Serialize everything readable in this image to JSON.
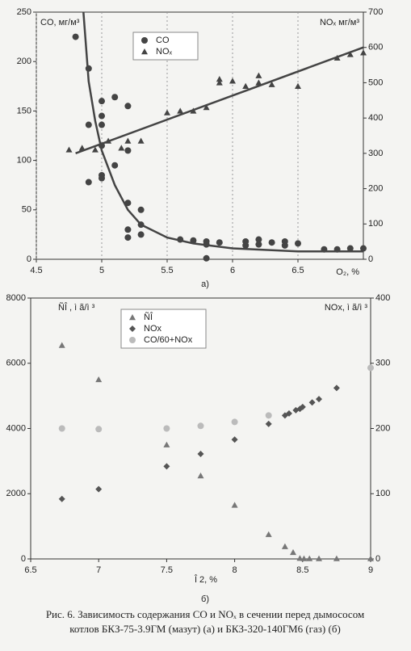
{
  "chart_data": [
    {
      "type": "scatter",
      "label": "а)",
      "ylabel": "CO, мг/м³",
      "y2label": "NOₓ мг/м³",
      "xlabel": "O₂, %",
      "xlim": [
        4.5,
        7
      ],
      "xticks": [
        4.5,
        5,
        5.5,
        6,
        6.5
      ],
      "ylim": [
        0,
        250
      ],
      "yticks": [
        0,
        50,
        100,
        150,
        200,
        250
      ],
      "y2lim": [
        0,
        700
      ],
      "y2ticks": [
        0,
        100,
        200,
        300,
        400,
        500,
        600,
        700
      ],
      "grid": true,
      "legend": "top",
      "series": [
        {
          "name": "CO",
          "marker": "circle",
          "color": "#444",
          "x": [
            4.8,
            4.9,
            4.9,
            4.9,
            5,
            5,
            5,
            5,
            5,
            5,
            5.1,
            5.1,
            5.2,
            5.2,
            5.2,
            5.2,
            5.2,
            5.3,
            5.3,
            5.3,
            5.6,
            5.7,
            5.8,
            5.8,
            5.8,
            5.9,
            6.1,
            6.1,
            6.2,
            6.2,
            6.3,
            6.4,
            6.4,
            6.5,
            6.7,
            6.8,
            6.9,
            7
          ],
          "values": [
            225,
            193,
            136,
            78,
            160,
            145,
            136,
            115,
            85,
            82,
            164,
            95,
            155,
            110,
            57,
            30,
            22,
            50,
            35,
            25,
            20,
            19,
            18,
            15,
            1,
            17,
            18,
            14,
            20,
            15,
            17,
            18,
            14,
            16,
            10,
            10,
            11,
            11
          ]
        },
        {
          "name": "NOₓ",
          "marker": "triangle",
          "color": "#444",
          "axis": "y2",
          "x": [
            4.75,
            4.85,
            4.95,
            5.05,
            5.15,
            5.2,
            5.3,
            5.5,
            5.6,
            5.7,
            5.8,
            5.9,
            5.9,
            6,
            6.1,
            6.2,
            6.2,
            6.3,
            6.5,
            6.8,
            6.9,
            7
          ],
          "values": [
            310,
            315,
            310,
            335,
            315,
            335,
            335,
            415,
            420,
            420,
            430,
            500,
            510,
            505,
            490,
            520,
            500,
            495,
            490,
            570,
            580,
            585
          ]
        },
        {
          "type": "line",
          "color": "#444",
          "x": [
            4.86,
            4.9,
            4.95,
            5,
            5.1,
            5.2,
            5.3,
            5.5,
            5.7,
            6,
            6.5,
            7
          ],
          "values": [
            250,
            180,
            140,
            110,
            75,
            50,
            35,
            22,
            16,
            11,
            8,
            8
          ]
        },
        {
          "type": "line",
          "color": "#444",
          "axis": "y2",
          "x": [
            4.8,
            7
          ],
          "values": [
            300,
            600
          ]
        }
      ]
    },
    {
      "type": "scatter",
      "label": "б)",
      "ylabel": "ÑÎ , ì ã/ì ³",
      "y2label": "NOx, ì ã/ì ³",
      "xlabel": "Î 2, %",
      "xlim": [
        6.5,
        9
      ],
      "xticks": [
        6.5,
        7,
        7.5,
        8,
        8.5,
        9
      ],
      "ylim": [
        0,
        8000
      ],
      "yticks": [
        0,
        2000,
        4000,
        6000,
        8000
      ],
      "y2lim": [
        0,
        400
      ],
      "y2ticks": [
        0,
        100,
        200,
        300,
        400
      ],
      "grid": false,
      "legend": "top",
      "series": [
        {
          "name": "ÑÎ",
          "marker": "triangle",
          "color": "#777",
          "x": [
            6.73,
            7,
            7.5,
            7.75,
            8,
            8.25,
            8.37,
            8.43,
            8.48,
            8.51,
            8.55,
            8.62,
            8.75,
            9
          ],
          "values": [
            6550,
            5500,
            3500,
            2550,
            1650,
            750,
            380,
            200,
            20,
            10,
            10,
            10,
            10,
            10
          ]
        },
        {
          "name": "NOx",
          "marker": "diamond",
          "color": "#555",
          "axis": "y2",
          "x": [
            6.73,
            7,
            7.5,
            7.75,
            8,
            8.25,
            8.37,
            8.4,
            8.45,
            8.48,
            8.5,
            8.57,
            8.62,
            8.75,
            9
          ],
          "values": [
            92,
            107,
            142,
            161,
            183,
            207,
            220,
            223,
            228,
            230,
            233,
            240,
            245,
            262,
            293
          ]
        },
        {
          "name": "CO/60+NOx",
          "marker": "circle",
          "color": "#bbb",
          "axis": "y2",
          "x": [
            6.73,
            7,
            7.5,
            7.75,
            8,
            8.25,
            9
          ],
          "values": [
            200,
            199,
            200,
            204,
            210,
            220,
            293
          ]
        }
      ]
    }
  ],
  "caption": [
    "Рис. 6. Зависимость содержания CO и NOₓ в сечении перед дымососом",
    "котлов БКЗ-75-3.9ГМ (мазут) (а) и БКЗ-320-140ГМ6 (газ) (б)"
  ]
}
